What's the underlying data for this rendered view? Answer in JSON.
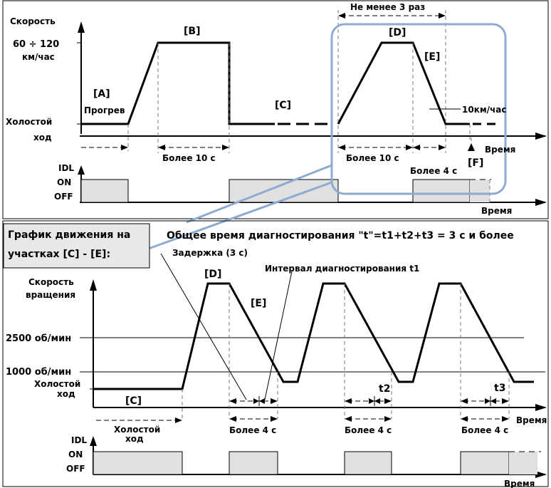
{
  "top": {
    "y_label": "Скорость",
    "speed_range_line1": "60 ÷ 120",
    "speed_range_line2": "км/час",
    "idle_line1": "Холостой",
    "idle_line2": "ход",
    "phase_a": "[A]",
    "warmup": "Прогрев",
    "phase_b": "[B]",
    "phase_c": "[C]",
    "phase_d": "[D]",
    "phase_e": "[E]",
    "phase_f": "[F]",
    "repeat_note": "Не менее 3 раз",
    "speed_10": "10км/час",
    "more_10s_1": "Более 10 с",
    "more_10s_2": "Более 10 с",
    "more_4s": "Более 4 с",
    "time_label": "Время",
    "idl_label": "IDL",
    "on_label": "ON",
    "off_label": "OFF",
    "time_label_2": "Время"
  },
  "bottom": {
    "callout_line1": "График движения на",
    "callout_line2": "участках [C] - [E]:",
    "total_time": "Общее время диагностирования \"t\"=t1+t2+t3 = 3 с и более",
    "delay": "Задержка (3 с)",
    "phase_d": "[D]",
    "interval_t1": "Интервал диагностирования t1",
    "y_label_line1": "Скорость",
    "y_label_line2": "вращения",
    "phase_e": "[E]",
    "rpm_2500": "2500 об/мин",
    "rpm_1000": "1000 об/мин",
    "idle_line1": "Холостой",
    "idle_line2": "ход",
    "phase_c": "[C]",
    "t2": "t2",
    "t3": "t3",
    "idle_span_line1": "Холостой",
    "idle_span_line2": "ход",
    "more_4s_1": "Более 4 с",
    "more_4s_2": "Более 4 с",
    "more_4s_3": "Более 4 с",
    "time_label": "Время",
    "idl_label": "IDL",
    "on_label": "ON",
    "off_label": "OFF",
    "time_label_2": "Время"
  },
  "colors": {
    "highlight_frame": "#8eaad0",
    "callout_fill": "#e8e8e8",
    "off_fill": "#e0e0e0"
  }
}
